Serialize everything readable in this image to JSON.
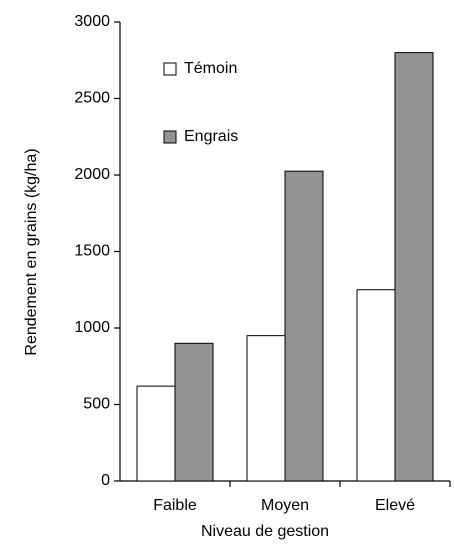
{
  "chart_data": {
    "type": "bar",
    "xlabel": "Niveau de gestion",
    "ylabel": "Rendement en grains (kg/ha)",
    "categories": [
      "Faible",
      "Moyen",
      "Elevé"
    ],
    "series": [
      {
        "name": "Témoin",
        "color": "#ffffff",
        "values": [
          620,
          950,
          1250
        ]
      },
      {
        "name": "Engrais",
        "color": "#939393",
        "values": [
          900,
          2025,
          2800
        ]
      }
    ],
    "ylim": [
      0,
      3000
    ],
    "yticks": [
      0,
      500,
      1000,
      1500,
      2000,
      2500,
      3000
    ],
    "grid": false,
    "legend": "upper left"
  }
}
